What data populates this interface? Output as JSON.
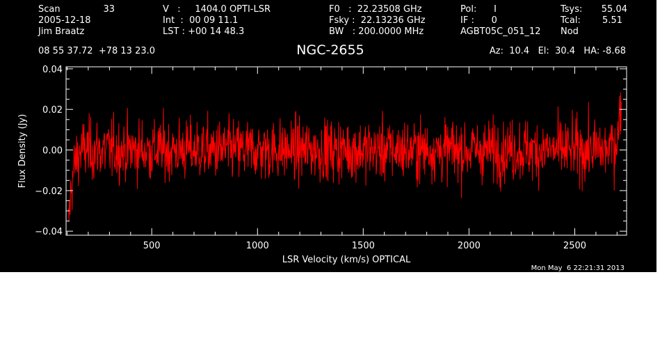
{
  "header": {
    "col1": [
      "Scan",
      "2005-12-18",
      "Jim Braatz"
    ],
    "scan_number": "33",
    "col2": [
      "V   :     1404.0 OPTI-LSR",
      "Int  :  00 09 11.1",
      "LST : +00 14 48.3"
    ],
    "col3": [
      "F0   :  22.23508 GHz",
      "Fsky :  22.13236 GHz",
      "BW   : 200.0000 MHz"
    ],
    "col4": [
      "Pol:      I",
      "IF :      0",
      "AGBT05C_051_12"
    ],
    "col5_labels": [
      "Tsys:",
      "Tcal:",
      "Nod"
    ],
    "col5_values": [
      "55.04",
      "5.51"
    ],
    "coords": "08 55 37.72  +78 13 23.0",
    "pointing": "Az:  10.4   El:  30.4   HA: -8.68"
  },
  "chart_data": {
    "type": "line",
    "title": "NGC-2655",
    "xlabel": "LSR Velocity (km/s) OPTICAL",
    "ylabel": "Flux Density (Jy)",
    "xlim": [
      95,
      2745
    ],
    "ylim": [
      -0.042,
      0.041
    ],
    "xticks": [
      500,
      1000,
      1500,
      2000,
      2500
    ],
    "yticks": [
      -0.04,
      -0.02,
      0.0,
      0.02,
      0.04
    ],
    "ytick_labels": [
      "−0.04",
      "−0.02",
      "0.00",
      "0.02",
      "0.04"
    ],
    "minor_xtick_step": 100,
    "minor_ytick_step": 0.005,
    "grid": false,
    "series": [
      {
        "color": "#ff0000",
        "x_start": 105,
        "x_end": 2720,
        "n_points": 1400,
        "noise_rms_jy": 0.0075,
        "x": [
          105,
          112,
          120,
          130,
          145,
          170,
          250,
          500,
          1000,
          1500,
          2000,
          2500,
          2650,
          2690,
          2705,
          2715,
          2720
        ],
        "y": [
          -0.039,
          -0.028,
          -0.018,
          -0.01,
          -0.004,
          0.0,
          0.0,
          0.0,
          0.0,
          0.0,
          0.0,
          0.0,
          0.0,
          0.003,
          0.008,
          0.018,
          0.028
        ]
      }
    ]
  },
  "footer": {
    "timestamp": "Mon May  6 22:21:31 2013"
  }
}
